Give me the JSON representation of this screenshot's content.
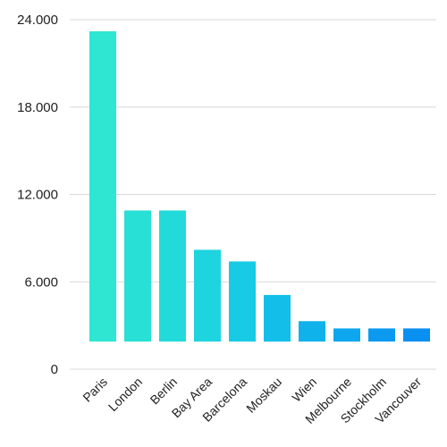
{
  "chart_data": {
    "type": "bar",
    "title": "",
    "xlabel": "",
    "ylabel": "",
    "categories": [
      "Paris",
      "London",
      "Berlin",
      "Bay Area",
      "Barcelona",
      "Moskau",
      "Wien",
      "Melbourne",
      "Stockholm",
      "Vancouver"
    ],
    "values": [
      23200,
      10900,
      10900,
      8200,
      7400,
      5100,
      3300,
      2800,
      2800,
      2800
    ],
    "baseline": 1900,
    "ylim": [
      0,
      24000
    ],
    "yticks": [
      0,
      6000,
      12000,
      18000,
      24000
    ],
    "ytick_labels": [
      "0",
      "6.000",
      "12.000",
      "18.000",
      "24.000"
    ],
    "grid": true,
    "legend": "none",
    "colors": [
      "#2ee6d2",
      "#29e0d6",
      "#23dada",
      "#1ed4df",
      "#17cbe4",
      "#13bfe9",
      "#10b2ec",
      "#0ea6ee",
      "#0b9af0",
      "#0a90f1"
    ]
  }
}
